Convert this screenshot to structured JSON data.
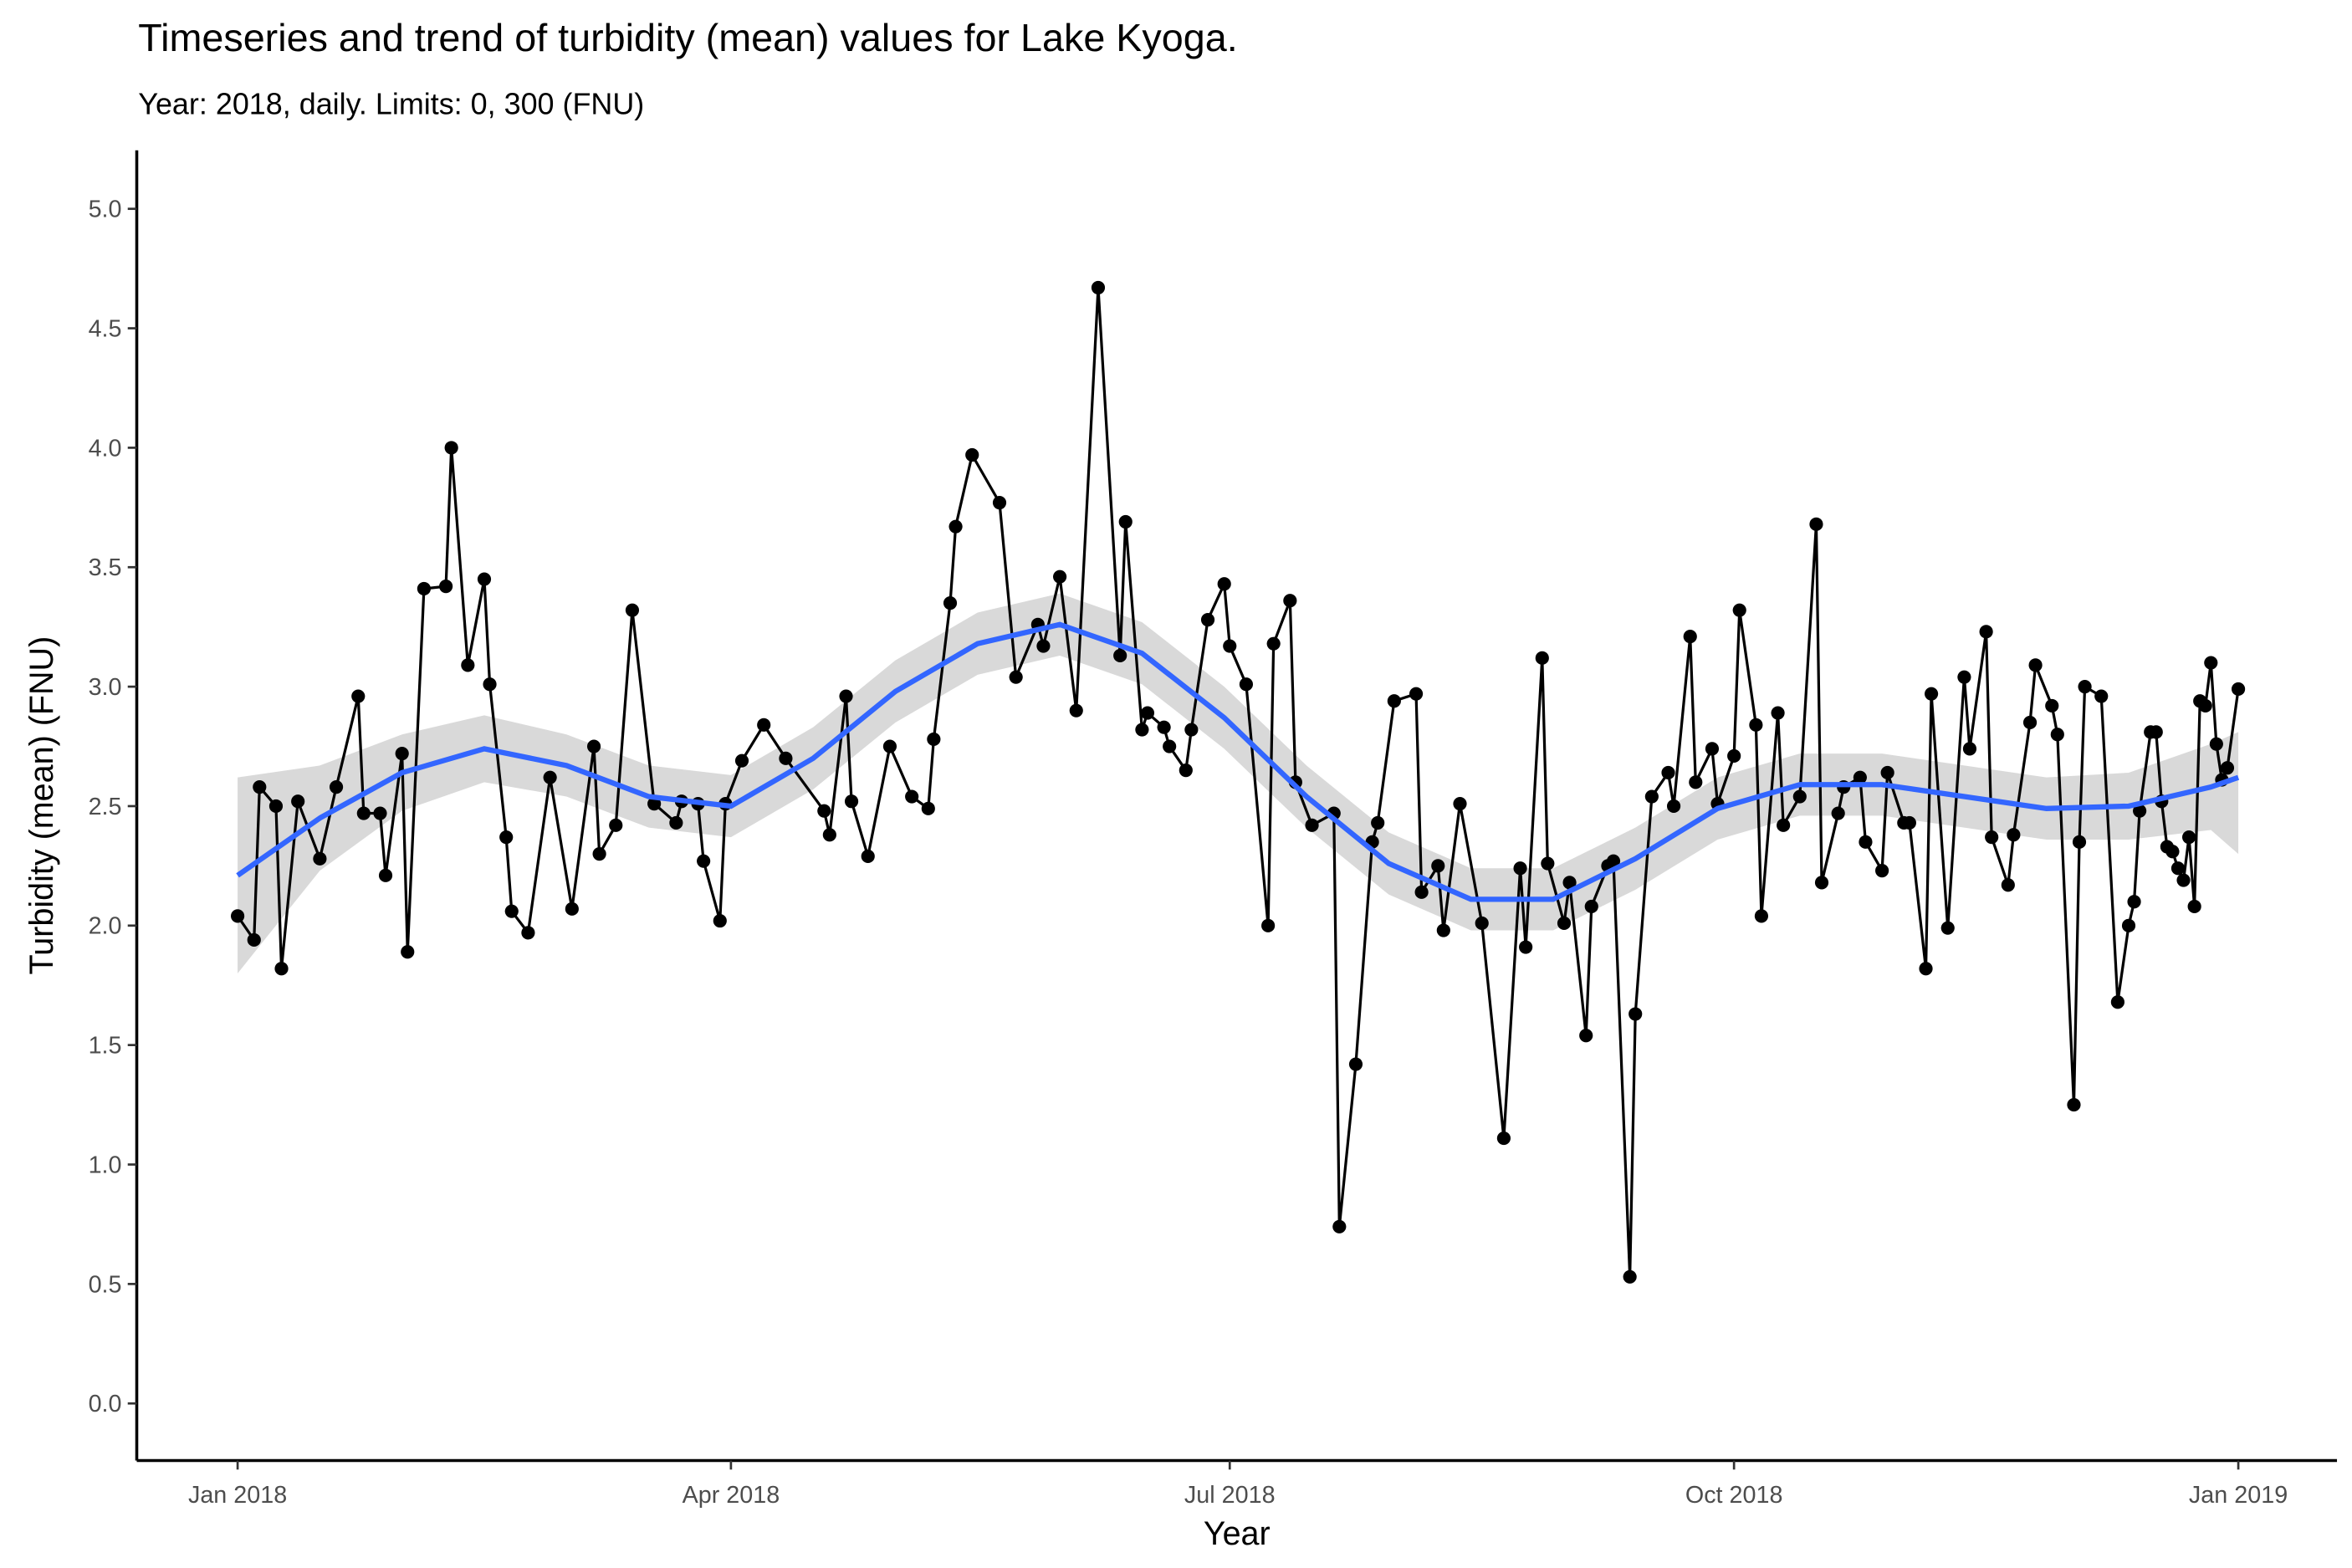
{
  "chart_data": {
    "type": "line",
    "title": "Timeseries and trend of turbidity (mean) values for Lake Kyoga.",
    "subtitle": "Year: 2018, daily. Limits: 0, 300 (FNU)",
    "x_label": "Year",
    "y_label": "Turbidity (mean) (FNU)",
    "color": "#000000",
    "x": [
      0,
      3,
      4,
      7,
      8,
      11,
      15,
      18,
      22,
      23,
      26,
      27,
      30,
      31,
      34,
      38,
      39,
      42,
      45,
      46,
      49,
      50,
      53,
      57,
      61,
      65,
      66,
      69,
      72,
      76,
      80,
      81,
      84,
      85,
      88,
      89,
      92,
      96,
      100,
      107,
      108,
      111,
      112,
      115,
      119,
      123,
      126,
      127,
      130,
      131,
      134,
      139,
      142,
      146,
      147,
      150,
      153,
      157,
      161,
      162,
      165,
      166,
      169,
      170,
      173,
      174,
      177,
      180,
      181,
      184,
      188,
      189,
      192,
      193,
      196,
      200,
      201,
      204,
      207,
      208,
      211,
      215,
      216,
      219,
      220,
      223,
      227,
      231,
      234,
      235,
      238,
      239,
      242,
      243,
      246,
      247,
      250,
      251,
      254,
      255,
      258,
      261,
      262,
      265,
      266,
      269,
      270,
      273,
      274,
      277,
      278,
      281,
      282,
      285,
      288,
      289,
      292,
      293,
      296,
      297,
      300,
      301,
      304,
      305,
      308,
      309,
      312,
      315,
      316,
      319,
      320,
      323,
      324,
      327,
      328,
      331,
      332,
      335,
      336,
      337,
      340,
      343,
      345,
      346,
      347,
      349,
      350,
      351,
      352,
      353,
      354,
      355,
      356,
      357,
      358,
      359,
      360,
      361,
      362,
      363,
      365
    ],
    "values": [
      2.04,
      1.94,
      2.58,
      2.5,
      1.82,
      2.52,
      2.28,
      2.58,
      2.96,
      2.47,
      2.47,
      2.21,
      2.72,
      1.89,
      3.41,
      3.42,
      4.0,
      3.09,
      3.45,
      3.01,
      2.37,
      2.06,
      1.97,
      2.62,
      2.07,
      2.75,
      2.3,
      2.42,
      3.32,
      2.51,
      2.43,
      2.52,
      2.51,
      2.27,
      2.02,
      2.51,
      2.69,
      2.84,
      2.7,
      2.48,
      2.38,
      2.96,
      2.52,
      2.29,
      2.75,
      2.54,
      2.49,
      2.78,
      3.35,
      3.67,
      3.97,
      3.77,
      3.04,
      3.26,
      3.17,
      3.46,
      2.9,
      4.67,
      3.13,
      3.69,
      2.82,
      2.89,
      2.83,
      2.75,
      2.65,
      2.82,
      3.28,
      3.43,
      3.17,
      3.01,
      2.0,
      3.18,
      3.36,
      2.6,
      2.42,
      2.47,
      0.74,
      1.42,
      2.35,
      2.43,
      2.94,
      2.97,
      2.14,
      2.25,
      1.98,
      2.51,
      2.01,
      1.11,
      2.24,
      1.91,
      3.12,
      2.26,
      2.01,
      2.18,
      1.54,
      2.08,
      2.25,
      2.27,
      0.53,
      1.63,
      2.54,
      2.64,
      2.5,
      3.21,
      2.6,
      2.74,
      2.51,
      2.71,
      3.32,
      2.84,
      2.04,
      2.89,
      2.42,
      2.54,
      3.68,
      2.18,
      2.47,
      2.58,
      2.62,
      2.35,
      2.23,
      2.64,
      2.43,
      2.43,
      1.82,
      2.97,
      1.99,
      3.04,
      2.74,
      3.23,
      2.37,
      2.17,
      2.38,
      2.85,
      3.09,
      2.92,
      2.8,
      1.25,
      2.35,
      3.0,
      2.96,
      1.68,
      2.0,
      2.1,
      2.48,
      2.81,
      2.81,
      2.52,
      2.33,
      2.31,
      2.24,
      2.19,
      2.37,
      2.08,
      2.94,
      2.92,
      3.1,
      2.76,
      2.61,
      2.66,
      2.99
    ],
    "trend": {
      "color": "#3366FF",
      "band_color": "#d9d9d9",
      "x": [
        0,
        15,
        30,
        45,
        60,
        75,
        90,
        105,
        120,
        135,
        150,
        165,
        180,
        195,
        210,
        225,
        240,
        255,
        270,
        285,
        300,
        315,
        330,
        345,
        360,
        365
      ],
      "values": [
        2.21,
        2.45,
        2.64,
        2.74,
        2.67,
        2.54,
        2.5,
        2.7,
        2.98,
        3.18,
        3.26,
        3.14,
        2.87,
        2.54,
        2.26,
        2.11,
        2.11,
        2.28,
        2.49,
        2.59,
        2.59,
        2.54,
        2.49,
        2.5,
        2.58,
        2.62
      ],
      "lower": [
        1.8,
        2.23,
        2.48,
        2.6,
        2.54,
        2.41,
        2.37,
        2.57,
        2.85,
        3.05,
        3.13,
        3.01,
        2.74,
        2.41,
        2.13,
        1.98,
        1.98,
        2.15,
        2.36,
        2.46,
        2.46,
        2.41,
        2.36,
        2.36,
        2.4,
        2.3
      ],
      "upper": [
        2.62,
        2.67,
        2.8,
        2.88,
        2.8,
        2.67,
        2.63,
        2.83,
        3.11,
        3.31,
        3.39,
        3.27,
        3.0,
        2.67,
        2.39,
        2.24,
        2.24,
        2.41,
        2.62,
        2.72,
        2.72,
        2.67,
        2.62,
        2.64,
        2.76,
        2.81
      ]
    },
    "xlim": [
      -18.4,
      383
    ],
    "xticks": [
      {
        "value": 0,
        "label": "Jan 2018"
      },
      {
        "value": 90,
        "label": "Apr 2018"
      },
      {
        "value": 181,
        "label": "Jul 2018"
      },
      {
        "value": 273,
        "label": "Oct 2018"
      },
      {
        "value": 365,
        "label": "Jan 2019"
      }
    ],
    "ylim": [
      -0.239,
      5.245
    ],
    "yticks": [
      {
        "value": 0,
        "label": "0.0"
      },
      0.5,
      {
        "value": 1,
        "label": "1.0"
      },
      1.5,
      {
        "value": 2,
        "label": "2.0"
      },
      2.5,
      {
        "value": 3,
        "label": "3.0"
      },
      3.5,
      {
        "value": 4,
        "label": "4.0"
      },
      4.5,
      {
        "value": 5,
        "label": "5.0"
      }
    ],
    "grid": false
  }
}
